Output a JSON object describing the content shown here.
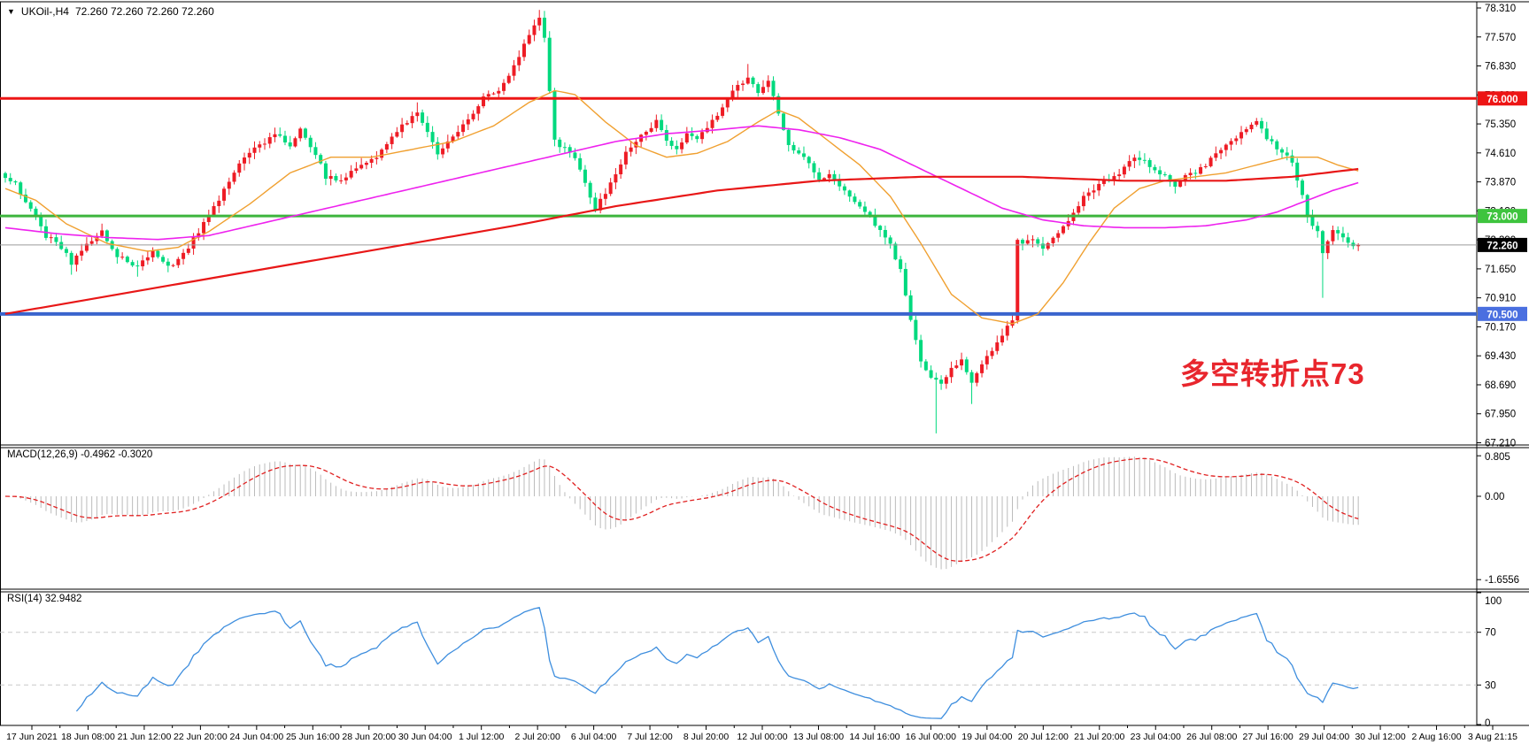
{
  "title": {
    "dropdown_icon": "▼",
    "symbol": "UKOil-,H4",
    "quotes": "72.260 72.260 72.260 72.260"
  },
  "chart_data": {
    "type": "candlestick",
    "symbol": "UKOil",
    "timeframe": "H4",
    "bull_color": "#ee1c25",
    "bear_color": "#00d97e",
    "price_axis": {
      "top_value": 78.31,
      "tick_step": 0.74,
      "ticks": [
        "78.310",
        "77.570",
        "76.830",
        "76.090",
        "75.350",
        "74.610",
        "73.870",
        "73.130",
        "72.390",
        "71.650",
        "70.910",
        "70.170",
        "69.430",
        "68.690",
        "67.950",
        "67.210"
      ]
    },
    "levels": [
      {
        "name": "resistance-76",
        "value": 76.0,
        "label": "76.000",
        "color": "#ed1515",
        "badge": "#ed1515",
        "width": 3
      },
      {
        "name": "pivot-73",
        "value": 73.0,
        "label": "73.000",
        "color": "#3db53d",
        "badge": "#3ec43e",
        "width": 3
      },
      {
        "name": "support-70.5",
        "value": 70.5,
        "label": "70.500",
        "color": "#3a64cd",
        "badge": "#4a6fe0",
        "width": 4
      }
    ],
    "current_price": {
      "value": 72.26,
      "label": "72.260",
      "line_color": "#9a9a9a",
      "badge": "#000000"
    },
    "candles": {
      "count": 267,
      "path_anchors": [
        [
          0,
          74.0
        ],
        [
          2,
          73.8
        ],
        [
          5,
          73.2
        ],
        [
          8,
          72.5
        ],
        [
          11,
          72.2
        ],
        [
          13,
          71.8
        ],
        [
          16,
          72.3
        ],
        [
          19,
          72.6
        ],
        [
          22,
          72.0
        ],
        [
          26,
          71.7
        ],
        [
          29,
          72.1
        ],
        [
          32,
          71.7
        ],
        [
          35,
          72.0
        ],
        [
          38,
          72.6
        ],
        [
          41,
          73.2
        ],
        [
          44,
          73.9
        ],
        [
          47,
          74.5
        ],
        [
          50,
          74.8
        ],
        [
          53,
          75.1
        ],
        [
          56,
          74.8
        ],
        [
          58,
          75.2
        ],
        [
          61,
          74.6
        ],
        [
          63,
          74.0
        ],
        [
          66,
          73.9
        ],
        [
          69,
          74.2
        ],
        [
          72,
          74.4
        ],
        [
          75,
          74.8
        ],
        [
          78,
          75.3
        ],
        [
          81,
          75.6
        ],
        [
          83,
          75.1
        ],
        [
          85,
          74.6
        ],
        [
          88,
          75.0
        ],
        [
          91,
          75.5
        ],
        [
          94,
          76.0
        ],
        [
          97,
          76.2
        ],
        [
          100,
          76.8
        ],
        [
          102,
          77.4
        ],
        [
          104,
          77.9
        ],
        [
          105,
          78.1
        ],
        [
          106,
          77.6
        ],
        [
          107,
          76.2
        ],
        [
          108,
          74.9
        ],
        [
          110,
          74.7
        ],
        [
          112,
          74.5
        ],
        [
          114,
          73.8
        ],
        [
          116,
          73.2
        ],
        [
          118,
          73.6
        ],
        [
          120,
          74.1
        ],
        [
          122,
          74.6
        ],
        [
          124,
          74.9
        ],
        [
          126,
          75.2
        ],
        [
          128,
          75.4
        ],
        [
          130,
          74.9
        ],
        [
          132,
          74.7
        ],
        [
          134,
          75.1
        ],
        [
          136,
          75.0
        ],
        [
          138,
          75.2
        ],
        [
          140,
          75.6
        ],
        [
          142,
          76.0
        ],
        [
          144,
          76.3
        ],
        [
          146,
          76.5
        ],
        [
          148,
          76.2
        ],
        [
          150,
          76.5
        ],
        [
          152,
          75.6
        ],
        [
          154,
          74.8
        ],
        [
          156,
          74.6
        ],
        [
          158,
          74.3
        ],
        [
          160,
          73.9
        ],
        [
          162,
          74.1
        ],
        [
          164,
          73.7
        ],
        [
          166,
          73.5
        ],
        [
          168,
          73.2
        ],
        [
          170,
          73.0
        ],
        [
          172,
          72.6
        ],
        [
          174,
          72.3
        ],
        [
          176,
          71.6
        ],
        [
          178,
          70.3
        ],
        [
          180,
          69.3
        ],
        [
          182,
          68.9
        ],
        [
          184,
          68.7
        ],
        [
          186,
          69.1
        ],
        [
          188,
          69.3
        ],
        [
          190,
          68.8
        ],
        [
          192,
          69.2
        ],
        [
          194,
          69.6
        ],
        [
          196,
          70.0
        ],
        [
          198,
          70.35
        ],
        [
          199,
          72.35
        ],
        [
          200,
          72.3
        ],
        [
          202,
          72.4
        ],
        [
          204,
          72.2
        ],
        [
          206,
          72.4
        ],
        [
          208,
          72.7
        ],
        [
          210,
          73.1
        ],
        [
          212,
          73.5
        ],
        [
          214,
          73.7
        ],
        [
          216,
          73.9
        ],
        [
          218,
          74.0
        ],
        [
          220,
          74.2
        ],
        [
          222,
          74.5
        ],
        [
          224,
          74.4
        ],
        [
          226,
          74.2
        ],
        [
          228,
          74.0
        ],
        [
          230,
          73.8
        ],
        [
          232,
          74.0
        ],
        [
          234,
          74.1
        ],
        [
          236,
          74.3
        ],
        [
          238,
          74.6
        ],
        [
          240,
          74.8
        ],
        [
          242,
          75.0
        ],
        [
          244,
          75.2
        ],
        [
          246,
          75.4
        ],
        [
          248,
          75.0
        ],
        [
          250,
          74.7
        ],
        [
          252,
          74.6
        ],
        [
          253,
          74.4
        ],
        [
          255,
          73.5
        ],
        [
          256,
          73.0
        ],
        [
          257,
          72.8
        ],
        [
          258,
          72.6
        ],
        [
          259,
          72.0
        ],
        [
          260,
          72.4
        ],
        [
          261,
          72.6
        ],
        [
          262,
          72.5
        ],
        [
          263,
          72.4
        ],
        [
          264,
          72.3
        ],
        [
          266,
          72.26
        ]
      ],
      "wick_lows": {
        "13": 71.5,
        "26": 71.45,
        "183": 67.45,
        "190": 68.2,
        "259": 70.91
      },
      "wick_highs": {
        "81": 75.9,
        "105": 78.26,
        "146": 76.88
      }
    },
    "moving_averages": [
      {
        "name": "ma-fast-orange",
        "color": "#f0a030",
        "width": 1.4,
        "points": [
          [
            0,
            73.7
          ],
          [
            6,
            73.4
          ],
          [
            12,
            72.8
          ],
          [
            20,
            72.3
          ],
          [
            28,
            72.1
          ],
          [
            34,
            72.2
          ],
          [
            40,
            72.6
          ],
          [
            48,
            73.3
          ],
          [
            56,
            74.1
          ],
          [
            64,
            74.5
          ],
          [
            72,
            74.5
          ],
          [
            80,
            74.7
          ],
          [
            88,
            74.9
          ],
          [
            96,
            75.3
          ],
          [
            103,
            75.9
          ],
          [
            108,
            76.2
          ],
          [
            112,
            76.1
          ],
          [
            118,
            75.4
          ],
          [
            124,
            74.8
          ],
          [
            130,
            74.5
          ],
          [
            136,
            74.6
          ],
          [
            142,
            74.9
          ],
          [
            148,
            75.4
          ],
          [
            152,
            75.7
          ],
          [
            156,
            75.5
          ],
          [
            162,
            74.9
          ],
          [
            168,
            74.3
          ],
          [
            174,
            73.5
          ],
          [
            180,
            72.3
          ],
          [
            186,
            71.0
          ],
          [
            192,
            70.4
          ],
          [
            198,
            70.25
          ],
          [
            203,
            70.5
          ],
          [
            208,
            71.3
          ],
          [
            213,
            72.3
          ],
          [
            218,
            73.2
          ],
          [
            223,
            73.7
          ],
          [
            228,
            73.9
          ],
          [
            234,
            74.0
          ],
          [
            240,
            74.1
          ],
          [
            246,
            74.3
          ],
          [
            252,
            74.5
          ],
          [
            258,
            74.5
          ],
          [
            262,
            74.3
          ],
          [
            266,
            74.15
          ]
        ]
      },
      {
        "name": "ma-mid-magenta",
        "color": "#ee22ee",
        "width": 1.6,
        "points": [
          [
            0,
            72.7
          ],
          [
            10,
            72.55
          ],
          [
            20,
            72.45
          ],
          [
            30,
            72.4
          ],
          [
            40,
            72.5
          ],
          [
            50,
            72.8
          ],
          [
            60,
            73.1
          ],
          [
            70,
            73.4
          ],
          [
            80,
            73.7
          ],
          [
            90,
            74.0
          ],
          [
            100,
            74.3
          ],
          [
            110,
            74.6
          ],
          [
            120,
            74.9
          ],
          [
            130,
            75.1
          ],
          [
            140,
            75.2
          ],
          [
            148,
            75.3
          ],
          [
            156,
            75.2
          ],
          [
            164,
            75.0
          ],
          [
            172,
            74.7
          ],
          [
            180,
            74.2
          ],
          [
            188,
            73.7
          ],
          [
            196,
            73.2
          ],
          [
            204,
            72.9
          ],
          [
            212,
            72.75
          ],
          [
            220,
            72.7
          ],
          [
            228,
            72.7
          ],
          [
            236,
            72.75
          ],
          [
            244,
            72.9
          ],
          [
            250,
            73.1
          ],
          [
            256,
            73.4
          ],
          [
            261,
            73.65
          ],
          [
            266,
            73.85
          ]
        ]
      },
      {
        "name": "ma-slow-red",
        "color": "#e81717",
        "width": 2.2,
        "points": [
          [
            0,
            70.5
          ],
          [
            20,
            70.95
          ],
          [
            40,
            71.4
          ],
          [
            60,
            71.85
          ],
          [
            80,
            72.3
          ],
          [
            100,
            72.75
          ],
          [
            120,
            73.25
          ],
          [
            140,
            73.65
          ],
          [
            160,
            73.9
          ],
          [
            180,
            74.0
          ],
          [
            200,
            74.0
          ],
          [
            220,
            73.9
          ],
          [
            240,
            73.9
          ],
          [
            253,
            74.0
          ],
          [
            266,
            74.2
          ]
        ]
      }
    ],
    "macd": {
      "label": "MACD(12,26,9)",
      "macd_value": "-0.4962",
      "signal_value": "-0.3020",
      "fast": 12,
      "slow": 26,
      "signal": 9,
      "axis_ticks": [
        "0.805",
        "0.00",
        "-1.6556"
      ],
      "axis_values": [
        0.805,
        0,
        -1.6556
      ],
      "hist_color": "#bbbbbb",
      "signal_color": "#e02020"
    },
    "rsi": {
      "label": "RSI(14)",
      "value": "32.9482",
      "period": 14,
      "axis_ticks": [
        "100",
        "70",
        "30",
        "0"
      ],
      "axis_values": [
        100,
        70,
        30,
        0
      ],
      "levels": [
        70,
        30
      ],
      "line_color": "#3e8ede",
      "level_color": "#c8c8c8"
    },
    "time_axis": {
      "labels": [
        "17 Jun 2021",
        "18 Jun 08:00",
        "21 Jun 12:00",
        "22 Jun 20:00",
        "24 Jun 04:00",
        "25 Jun 16:00",
        "28 Jun 20:00",
        "30 Jun 04:00",
        "1 Jul 12:00",
        "2 Jul 20:00",
        "6 Jul 04:00",
        "7 Jul 12:00",
        "8 Jul 20:00",
        "12 Jul 00:00",
        "13 Jul 08:00",
        "14 Jul 16:00",
        "16 Jul 00:00",
        "19 Jul 04:00",
        "20 Jul 12:00",
        "21 Jul 20:00",
        "23 Jul 04:00",
        "26 Jul 08:00",
        "27 Jul 16:00",
        "29 Jul 04:00",
        "30 Jul 12:00",
        "2 Aug 16:00",
        "3 Aug 21:15"
      ]
    },
    "annotation": {
      "text": "多空转折点73",
      "color": "#e8262d"
    }
  }
}
